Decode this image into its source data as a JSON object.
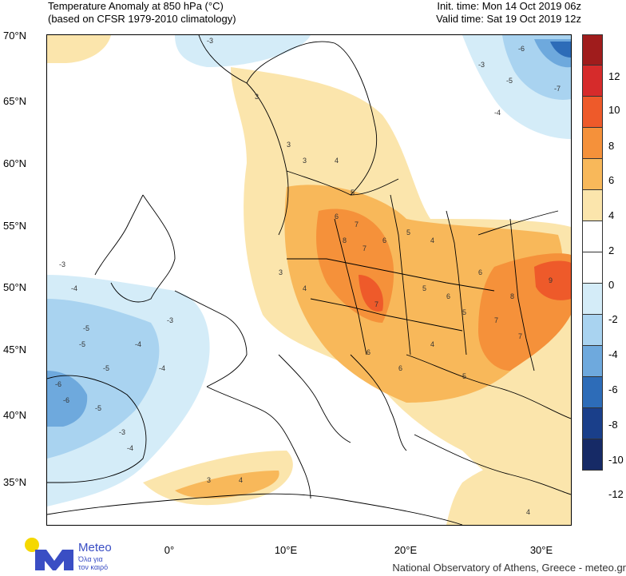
{
  "header": {
    "title_line1": "Temperature Anomaly at 850 hPa (°C)",
    "title_line2": "(based on CFSR 1979-2010 climatology)",
    "init_time": "Init. time: Mon 14 Oct 2019 06z",
    "valid_time": "Valid time: Sat 19 Oct 2019 12z"
  },
  "axes": {
    "lat_labels": [
      "70°N",
      "65°N",
      "60°N",
      "55°N",
      "50°N",
      "45°N",
      "40°N",
      "35°N"
    ],
    "lon_labels": [
      "0°",
      "10°E",
      "20°E",
      "30°E"
    ]
  },
  "colorbar": {
    "labels": [
      "12",
      "10",
      "8",
      "6",
      "4",
      "2",
      "0",
      "-2",
      "-4",
      "-6",
      "-8",
      "-10",
      "-12"
    ],
    "colors": [
      "#a01c1c",
      "#d62b2b",
      "#ee5a2a",
      "#f5913a",
      "#f8b85a",
      "#fbe5ac",
      "#ffffff",
      "#ffffff",
      "#d4ecf8",
      "#a9d3f0",
      "#6ea9dd",
      "#2d6cb8",
      "#1a3f8a",
      "#162a66"
    ]
  },
  "map_annotations": {
    "warm": [
      "3",
      "3",
      "3",
      "4",
      "5",
      "6",
      "7",
      "8",
      "7",
      "6",
      "5",
      "4",
      "3",
      "4",
      "5",
      "6",
      "7",
      "8",
      "9",
      "7",
      "6",
      "5",
      "4",
      "3",
      "4",
      "6",
      "7",
      "6",
      "5",
      "4"
    ],
    "cold": [
      "-3",
      "-4",
      "-5",
      "-6",
      "-5",
      "-4",
      "-3",
      "-5",
      "-4",
      "-3",
      "-6",
      "-5",
      "-4",
      "-3",
      "-6",
      "-7",
      "-5",
      "-4",
      "-3"
    ]
  },
  "footer": {
    "logo_name": "Meteo",
    "logo_sub_line1": "Όλα για",
    "logo_sub_line2": "τον καιρό",
    "credit": "National Observatory of Athens, Greece - meteo.gr"
  }
}
